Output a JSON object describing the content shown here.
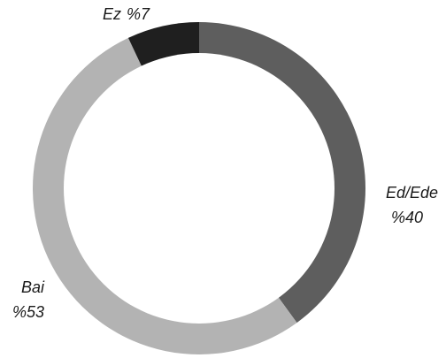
{
  "chart_data": {
    "type": "pie",
    "donut": true,
    "title": "",
    "slices": [
      {
        "label": "Ed/Ede",
        "percent_label": "%40",
        "value": 40,
        "color": "#5e5e5e"
      },
      {
        "label": "Bai",
        "percent_label": "%53",
        "value": 53,
        "color": "#b3b3b3"
      },
      {
        "label": "Ez",
        "percent_label": "%7",
        "value": 7,
        "color": "#1f1f1f"
      }
    ],
    "legend": "none"
  }
}
